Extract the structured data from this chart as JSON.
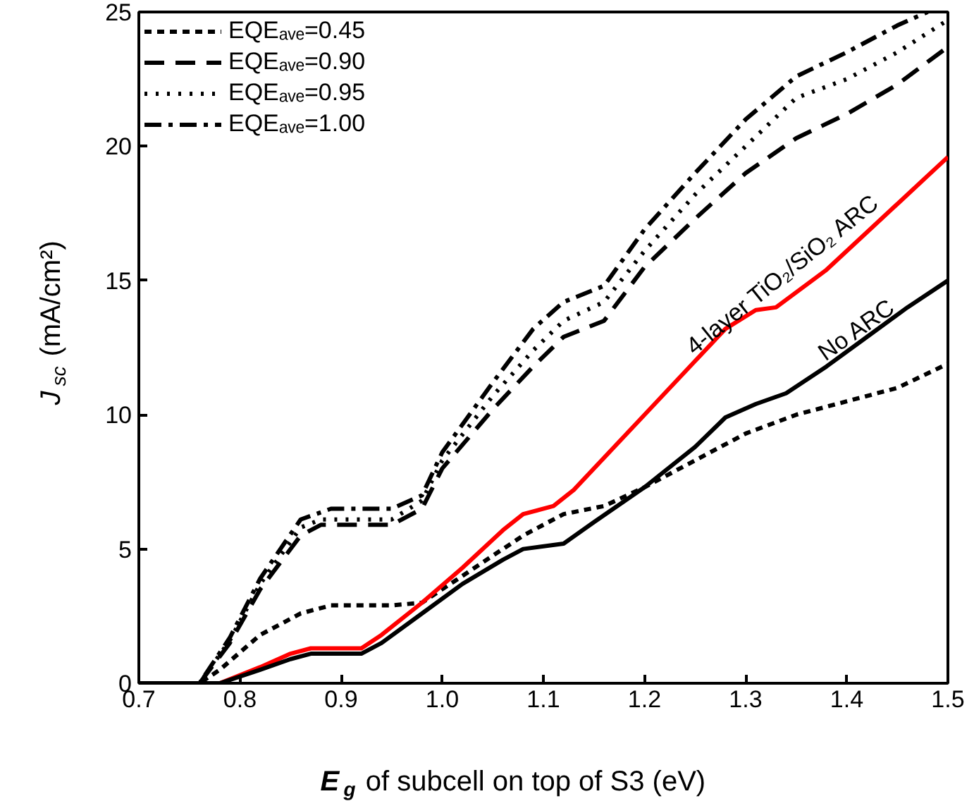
{
  "chart_data": {
    "type": "line",
    "xlabel": "E$_{g}$ of subcell on top of S3 (eV)",
    "ylabel": "J$_{sc}$ (mA/cm²)",
    "xlim": [
      0.7,
      1.5
    ],
    "xticks": [
      0.7,
      0.8,
      0.9,
      {
        "value": 1.0,
        "label": "1.0"
      },
      1.1,
      1.2,
      1.3,
      1.4,
      1.5
    ],
    "ylim": [
      0,
      25
    ],
    "yticks": [
      0,
      5,
      10,
      15,
      20,
      25
    ],
    "grid": false,
    "legend": "top left",
    "series": [
      {
        "name": "EQEₐᵥₑ=0.45",
        "color": "#000000",
        "line_style": "shortdash",
        "x": [
          0.7,
          0.76,
          0.78,
          0.82,
          0.86,
          0.89,
          0.95,
          0.98,
          1.02,
          1.08,
          1.12,
          1.16,
          1.2,
          1.25,
          1.3,
          1.35,
          1.4,
          1.45,
          1.5
        ],
        "values": [
          0,
          0,
          0.5,
          1.8,
          2.6,
          2.9,
          2.9,
          3.0,
          4.0,
          5.5,
          6.3,
          6.6,
          7.3,
          8.3,
          9.3,
          10.0,
          10.5,
          11.0,
          11.9
        ]
      },
      {
        "name": "EQEₐᵥₑ=0.90",
        "color": "#000000",
        "line_style": "dashed",
        "x": [
          0.7,
          0.76,
          0.79,
          0.82,
          0.86,
          0.88,
          0.95,
          0.98,
          1.0,
          1.05,
          1.09,
          1.12,
          1.16,
          1.2,
          1.25,
          1.3,
          1.35,
          1.4,
          1.45,
          1.5
        ],
        "values": [
          0,
          0,
          1.5,
          3.5,
          5.5,
          5.9,
          5.9,
          6.5,
          8.0,
          10.2,
          11.8,
          12.9,
          13.5,
          15.5,
          17.3,
          19.0,
          20.3,
          21.2,
          22.3,
          23.7
        ]
      },
      {
        "name": "EQEₐᵥₑ=0.95",
        "color": "#000000",
        "line_style": "dotted",
        "x": [
          0.7,
          0.76,
          0.79,
          0.82,
          0.86,
          0.88,
          0.95,
          0.98,
          1.0,
          1.05,
          1.09,
          1.12,
          1.16,
          1.2,
          1.25,
          1.3,
          1.35,
          1.4,
          1.45,
          1.5
        ],
        "values": [
          0,
          0,
          1.6,
          3.7,
          5.8,
          6.1,
          6.1,
          6.8,
          8.3,
          10.7,
          12.4,
          13.5,
          14.2,
          16.1,
          18.2,
          20.0,
          21.8,
          22.5,
          23.5,
          24.7
        ]
      },
      {
        "name": "EQEₐᵥₑ=1.00",
        "color": "#000000",
        "line_style": "dashdot",
        "x": [
          0.7,
          0.76,
          0.79,
          0.82,
          0.86,
          0.89,
          0.95,
          0.98,
          1.0,
          1.05,
          1.09,
          1.12,
          1.16,
          1.2,
          1.25,
          1.3,
          1.35,
          1.4,
          1.45,
          1.48
        ],
        "values": [
          0,
          0,
          1.7,
          3.9,
          6.1,
          6.5,
          6.5,
          7.0,
          8.6,
          11.2,
          13.2,
          14.2,
          14.8,
          16.9,
          19.0,
          21.0,
          22.6,
          23.5,
          24.5,
          25.0
        ]
      },
      {
        "color": "#ff0000",
        "line_style": "solid",
        "x": [
          0.7,
          0.78,
          0.82,
          0.85,
          0.87,
          0.92,
          0.94,
          0.98,
          1.02,
          1.06,
          1.08,
          1.11,
          1.13,
          1.2,
          1.25,
          1.28,
          1.31,
          1.33,
          1.38,
          1.42,
          1.46,
          1.5
        ],
        "values": [
          0,
          0,
          0.6,
          1.1,
          1.3,
          1.3,
          1.8,
          3.0,
          4.3,
          5.7,
          6.3,
          6.6,
          7.2,
          10.0,
          12.0,
          13.2,
          13.9,
          14.0,
          15.4,
          16.8,
          18.2,
          19.6
        ]
      },
      {
        "color": "#000000",
        "line_style": "solid",
        "x": [
          0.7,
          0.78,
          0.82,
          0.85,
          0.87,
          0.92,
          0.94,
          0.98,
          1.02,
          1.06,
          1.08,
          1.12,
          1.15,
          1.2,
          1.25,
          1.28,
          1.31,
          1.34,
          1.38,
          1.42,
          1.46,
          1.5
        ],
        "values": [
          0,
          0,
          0.5,
          0.9,
          1.1,
          1.1,
          1.5,
          2.6,
          3.7,
          4.6,
          5.0,
          5.2,
          6.0,
          7.3,
          8.8,
          9.9,
          10.4,
          10.8,
          11.8,
          12.9,
          14.0,
          15.0
        ]
      }
    ],
    "annotations": [
      "4-layer TiO₂/SiO₂ ARC",
      "No ARC"
    ]
  }
}
